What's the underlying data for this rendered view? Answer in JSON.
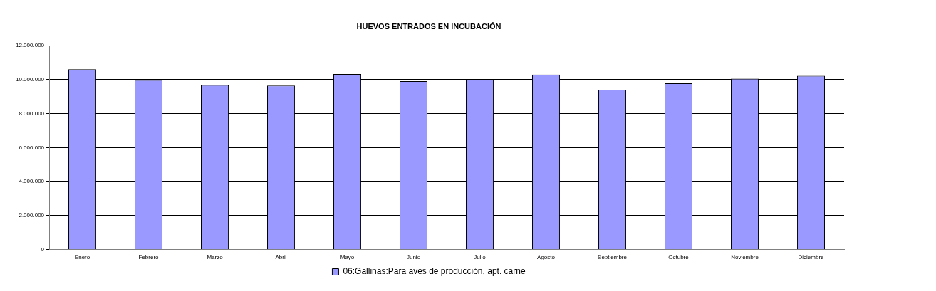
{
  "chart_data": {
    "type": "bar",
    "title": "HUEVOS ENTRADOS EN INCUBACIÓN",
    "categories": [
      "Enero",
      "Febrero",
      "Marzo",
      "Abril",
      "Mayo",
      "Junio",
      "Julio",
      "Agosto",
      "Septiembre",
      "Octubre",
      "Noviembre",
      "Diciembre"
    ],
    "series": [
      {
        "name": "06:Gallinas:Para aves de producción, apt. carne",
        "color": "#9999ff",
        "values": [
          10610000,
          9980000,
          9680000,
          9650000,
          10330000,
          9910000,
          10040000,
          10300000,
          9410000,
          9790000,
          10060000,
          10230000
        ]
      }
    ],
    "ylim": [
      0,
      12000000
    ],
    "yticks": [
      {
        "value": 0,
        "label": "0"
      },
      {
        "value": 2000000,
        "label": "2.000.000"
      },
      {
        "value": 4000000,
        "label": "4.000.000"
      },
      {
        "value": 6000000,
        "label": "6.000.000"
      },
      {
        "value": 8000000,
        "label": "8.000.000"
      },
      {
        "value": 10000000,
        "label": "10.000.000"
      },
      {
        "value": 12000000,
        "label": "12.000.000"
      }
    ],
    "grid": "y",
    "legend": "bottom"
  }
}
